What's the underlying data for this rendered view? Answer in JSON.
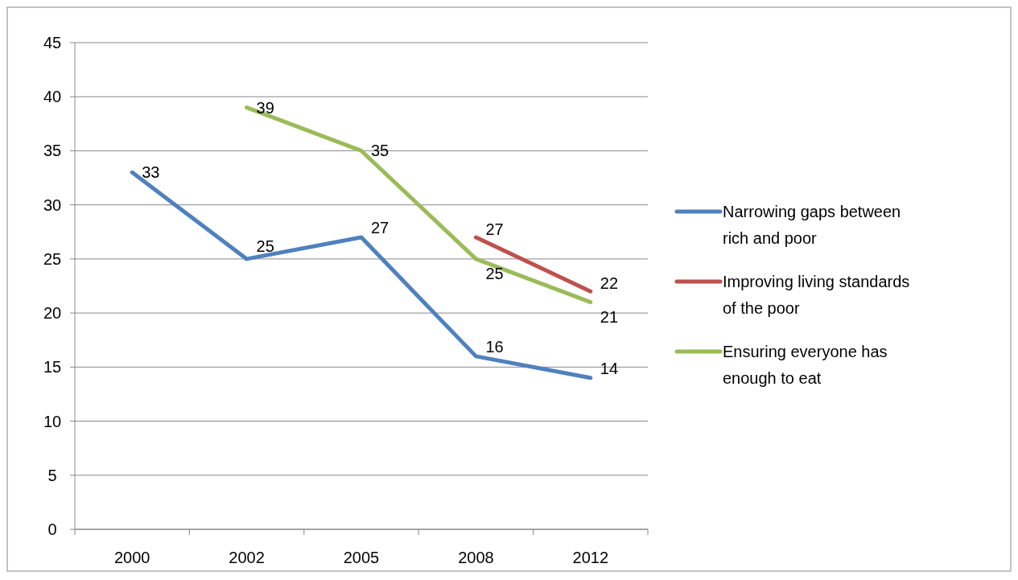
{
  "chart_data": {
    "type": "line",
    "categories": [
      "2000",
      "2002",
      "2005",
      "2008",
      "2012"
    ],
    "series": [
      {
        "name": "Narrowing gaps between rich and poor",
        "color": "#4f81bd",
        "values": [
          33,
          25,
          27,
          16,
          14
        ]
      },
      {
        "name": "Improving living standards of the poor",
        "color": "#c0504d",
        "values": [
          null,
          null,
          null,
          27,
          22
        ]
      },
      {
        "name": "Ensuring everyone has enough to eat",
        "color": "#9bbb59",
        "values": [
          null,
          39,
          35,
          25,
          21
        ]
      }
    ],
    "ylim": [
      0,
      45
    ],
    "yticks": [
      0,
      5,
      10,
      15,
      20,
      25,
      30,
      35,
      40,
      45
    ],
    "grid": "y",
    "legend": "right",
    "data_labels": true,
    "marker": "none",
    "line_style": "solid"
  }
}
